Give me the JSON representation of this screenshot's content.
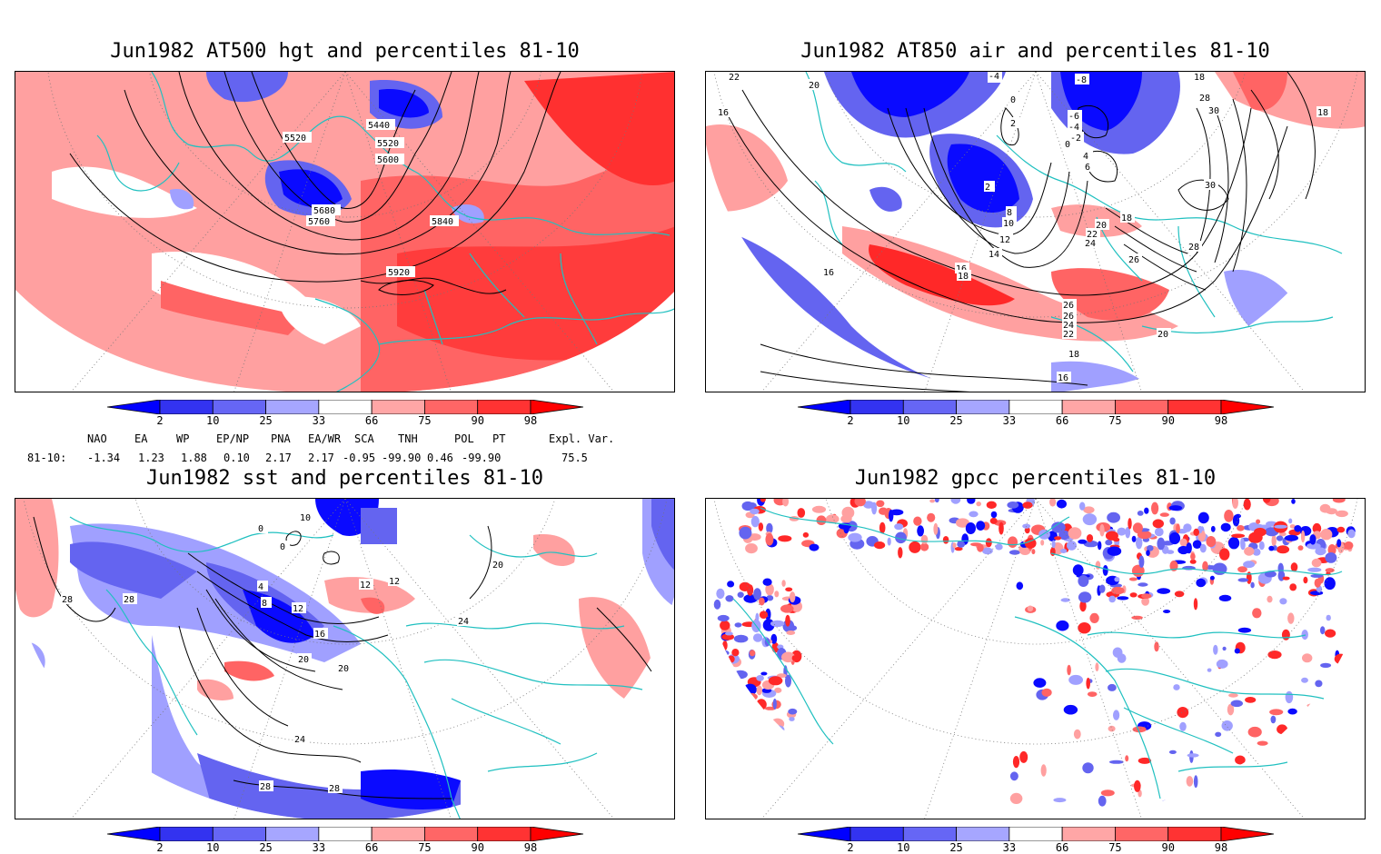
{
  "panels": [
    {
      "title": "Jun1982 AT500 hgt and percentiles 81-10",
      "contour_labels": [
        "5440",
        "5520",
        "5520",
        "5600",
        "5680",
        "5760",
        "5840",
        "5920"
      ]
    },
    {
      "title": "Jun1982 AT850 air and percentiles 81-10",
      "contour_labels": [
        "22",
        "20",
        "16",
        "-4",
        "-8",
        "0",
        "2",
        "-6",
        "-4",
        "-2",
        "0",
        "4",
        "6",
        "2",
        "8",
        "10",
        "12",
        "14",
        "16",
        "18",
        "18",
        "20",
        "22",
        "24",
        "26",
        "28",
        "30",
        "30",
        "28",
        "18",
        "18",
        "20",
        "16",
        "26",
        "26",
        "24",
        "22",
        "18",
        "16"
      ]
    },
    {
      "title": "Jun1982 sst and percentiles 81-10",
      "contour_labels": [
        "10",
        "0",
        "0",
        "12",
        "4",
        "8",
        "12",
        "16",
        "20",
        "20",
        "24",
        "24",
        "28",
        "28",
        "28",
        "28",
        "12",
        "20"
      ]
    },
    {
      "title": "Jun1982 gpcc percentiles 81-10",
      "contour_labels": []
    }
  ],
  "colorbar": {
    "labels": [
      "2",
      "10",
      "25",
      "33",
      "66",
      "75",
      "90",
      "98"
    ],
    "colors": [
      "#0000ff",
      "#3333f0",
      "#6666f5",
      "#a6a6ff",
      "#ffffff",
      "#ffa6a6",
      "#ff6666",
      "#ff3333",
      "#ff0000"
    ]
  },
  "indices": {
    "header": [
      "NAO",
      "EA",
      "WP",
      "EP/NP",
      "PNA",
      "EA/WR",
      "SCA",
      "TNH",
      "POL",
      "PT",
      "Expl. Var."
    ],
    "row_label": "81-10:",
    "values": [
      "-1.34",
      "1.23",
      "1.88",
      "0.10",
      "2.17",
      "2.17",
      "-0.95",
      "-99.90",
      "0.46",
      "-99.90",
      "75.5"
    ]
  },
  "colors": {
    "coast": "#20c0c0",
    "warm_light": "#ffa0a0",
    "warm_mid": "#ff6464",
    "warm_strong": "#ff2828",
    "cold_light": "#a0a0ff",
    "cold_mid": "#6464f0",
    "cold_strong": "#0a0aff"
  }
}
